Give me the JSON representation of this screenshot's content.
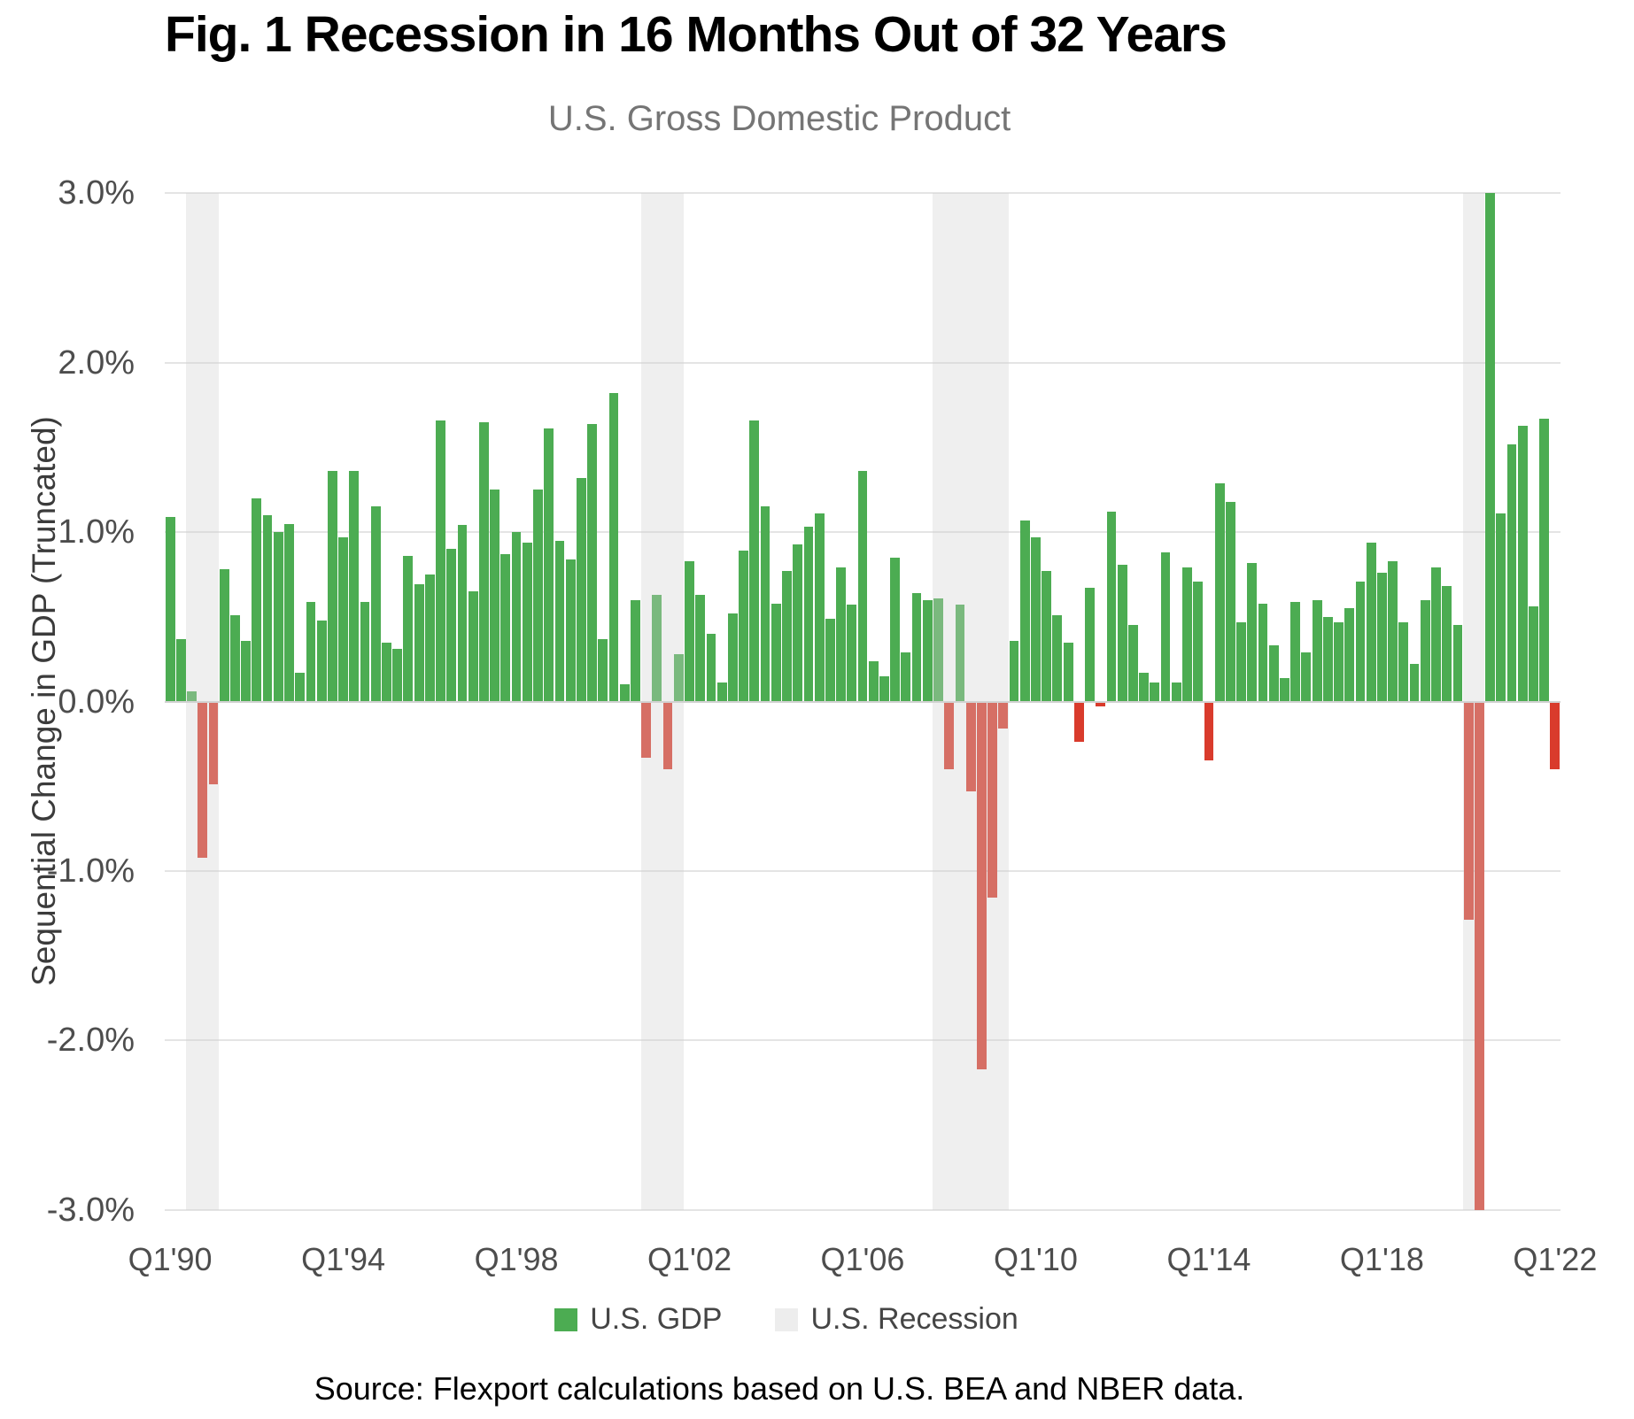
{
  "header": {
    "title": "Fig. 1 Recession in 16 Months Out of 32 Years",
    "subtitle": "U.S. Gross Domestic Product"
  },
  "y_axis": {
    "label": "Sequential Change in GDP (Truncated)",
    "tick_labels": [
      "3.0%",
      "2.0%",
      "1.0%",
      "0.0%",
      "-1.0%",
      "-2.0%",
      "-3.0%"
    ],
    "tick_values": [
      3,
      2,
      1,
      0,
      -1,
      -2,
      -3
    ]
  },
  "x_axis": {
    "ticks": [
      {
        "label": "Q1'90",
        "index": 0
      },
      {
        "label": "Q1'94",
        "index": 16
      },
      {
        "label": "Q1'98",
        "index": 32
      },
      {
        "label": "Q1'02",
        "index": 48
      },
      {
        "label": "Q1'06",
        "index": 64
      },
      {
        "label": "Q1'10",
        "index": 80
      },
      {
        "label": "Q1'14",
        "index": 96
      },
      {
        "label": "Q1'18",
        "index": 112
      },
      {
        "label": "Q1'22",
        "index": 128
      }
    ]
  },
  "legend": {
    "gdp_label": "U.S. GDP",
    "recession_label": "U.S. Recession"
  },
  "source": "Source: Flexport calculations based on U.S. BEA and NBER data.",
  "colors": {
    "positive": "#4cac52",
    "negative": "#d93b2c",
    "recession_band": "rgba(208,208,208,0.35)",
    "recession_swatch": "#ededed",
    "gridline": "#e4e4e4",
    "zero_line": "#d2d2d2",
    "subtitle_text": "#757575",
    "axis_text": "#4d4d4d"
  },
  "chart_data": {
    "type": "bar",
    "title": "U.S. Gross Domestic Product",
    "xlabel": "",
    "ylabel": "Sequential Change in GDP (Truncated)",
    "ylim": [
      -3,
      3
    ],
    "truncated_at": 3.0,
    "grid": true,
    "legend_position": "bottom",
    "frequency": "quarterly",
    "start_quarter": "Q1'90",
    "end_quarter": "Q1'22",
    "values": [
      1.09,
      0.37,
      0.06,
      -0.92,
      -0.49,
      0.78,
      0.51,
      0.36,
      1.2,
      1.1,
      1.0,
      1.05,
      0.17,
      0.59,
      0.48,
      1.36,
      0.97,
      1.36,
      0.59,
      1.15,
      0.35,
      0.31,
      0.86,
      0.69,
      0.75,
      1.66,
      0.9,
      1.04,
      0.65,
      1.65,
      1.25,
      0.87,
      1.0,
      0.94,
      1.25,
      1.61,
      0.95,
      0.84,
      1.32,
      1.64,
      0.37,
      1.82,
      0.1,
      0.6,
      -0.33,
      0.63,
      -0.4,
      0.28,
      0.83,
      0.63,
      0.4,
      0.11,
      0.52,
      0.89,
      1.66,
      1.15,
      0.58,
      0.77,
      0.93,
      1.03,
      1.11,
      0.49,
      0.79,
      0.57,
      1.36,
      0.24,
      0.15,
      0.85,
      0.29,
      0.64,
      0.6,
      0.61,
      -0.4,
      0.57,
      -0.53,
      -2.17,
      -1.16,
      -0.16,
      0.36,
      1.07,
      0.97,
      0.77,
      0.51,
      0.35,
      -0.24,
      0.67,
      -0.03,
      1.12,
      0.81,
      0.45,
      0.17,
      0.11,
      0.88,
      0.11,
      0.79,
      0.71,
      -0.35,
      1.29,
      1.18,
      0.47,
      0.82,
      0.58,
      0.33,
      0.14,
      0.59,
      0.29,
      0.6,
      0.5,
      0.47,
      0.55,
      0.71,
      0.94,
      0.76,
      0.83,
      0.47,
      0.22,
      0.6,
      0.79,
      0.68,
      0.45,
      -1.29,
      -3.0,
      3.0,
      1.11,
      1.52,
      1.63,
      0.56,
      1.67,
      -0.4
    ],
    "recession_bands_quarter_index": [
      [
        2,
        5
      ],
      [
        44,
        48
      ],
      [
        71,
        78
      ],
      [
        120,
        122
      ]
    ],
    "recession_periods": [
      "1990Q3–1991Q1",
      "2001Q1–2001Q4",
      "2007Q4–2009Q2",
      "2020Q1–2020Q2"
    ]
  }
}
